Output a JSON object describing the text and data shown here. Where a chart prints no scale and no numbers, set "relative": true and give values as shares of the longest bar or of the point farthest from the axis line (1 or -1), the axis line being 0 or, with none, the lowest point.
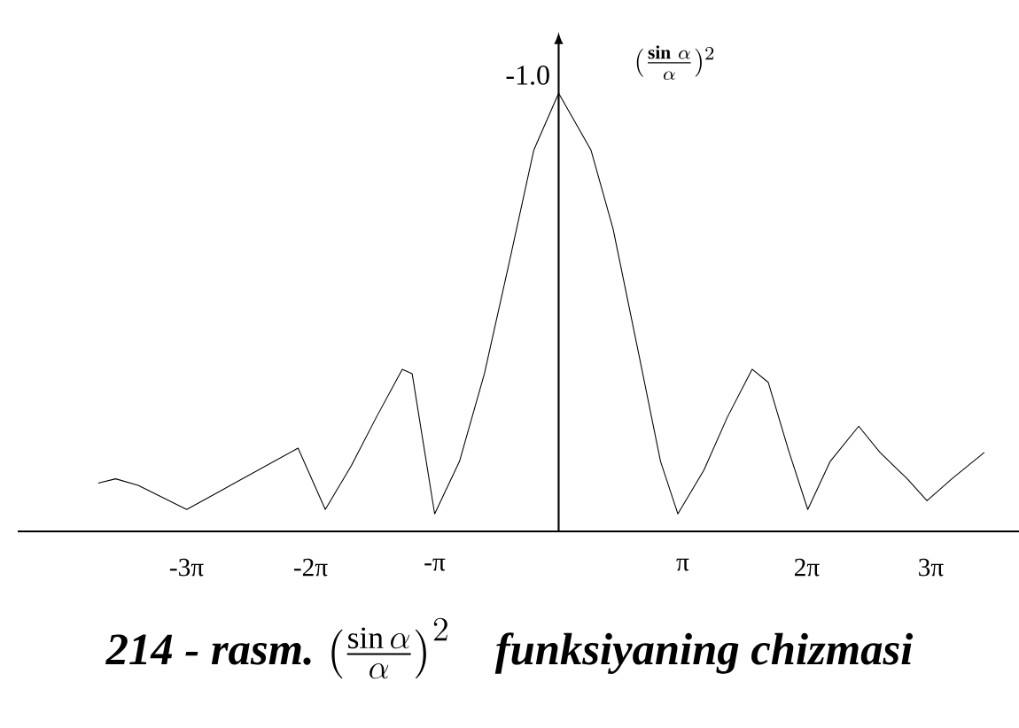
{
  "chart_data": {
    "type": "line",
    "relative": true,
    "color": "#000000",
    "title": "214 - rasm.",
    "subtitle": "\\left(\\frac{\\sin\\alpha}{\\alpha}\\right)^{2}",
    "ylabel": "(\\frac{\\textbf{sin}\\ \\alpha}{\\alpha})^{2}",
    "annotations": [
      {
        "text": "-1.0",
        "x": 0,
        "y": 1
      },
      "funksiyaning chizmasi"
    ],
    "x": [
      -11.66,
      -11.22,
      -10.65,
      -9.42,
      -6.6,
      -5.91,
      -5.25,
      -4.62,
      -3.96,
      -3.71,
      -3.14,
      -2.51,
      -1.88,
      -1.26,
      -0.63,
      0,
      0.82,
      1.38,
      2.04,
      2.58,
      3.02,
      3.68,
      4.27,
      4.9,
      5.31,
      5.84,
      6.31,
      6.88,
      7.6,
      8.14,
      8.83,
      9.33,
      9.96,
      10.78
    ],
    "values": [
      0.11,
      0.12,
      0.105,
      0.05,
      0.19,
      0.05,
      0.15,
      0.26,
      0.37,
      0.36,
      0.04,
      0.16,
      0.36,
      0.61,
      0.87,
      1,
      0.87,
      0.69,
      0.4,
      0.16,
      0.04,
      0.14,
      0.26,
      0.37,
      0.34,
      0.18,
      0.05,
      0.16,
      0.24,
      0.18,
      0.12,
      0.07,
      0.12,
      0.18
    ],
    "xlim": [
      -13.7,
      11.66
    ],
    "xticks": [
      {
        "value": -9.4248,
        "label": "-3π"
      },
      {
        "value": -6.2832,
        "label": "-2π"
      },
      {
        "value": -3.1416,
        "label": "-π"
      },
      {
        "value": 3.1416,
        "label": "π"
      },
      {
        "value": 6.2832,
        "label": "2π"
      },
      {
        "value": 9.4248,
        "label": "3π"
      }
    ],
    "tick_labels": "x",
    "marker": "none",
    "line_style": "solid"
  }
}
